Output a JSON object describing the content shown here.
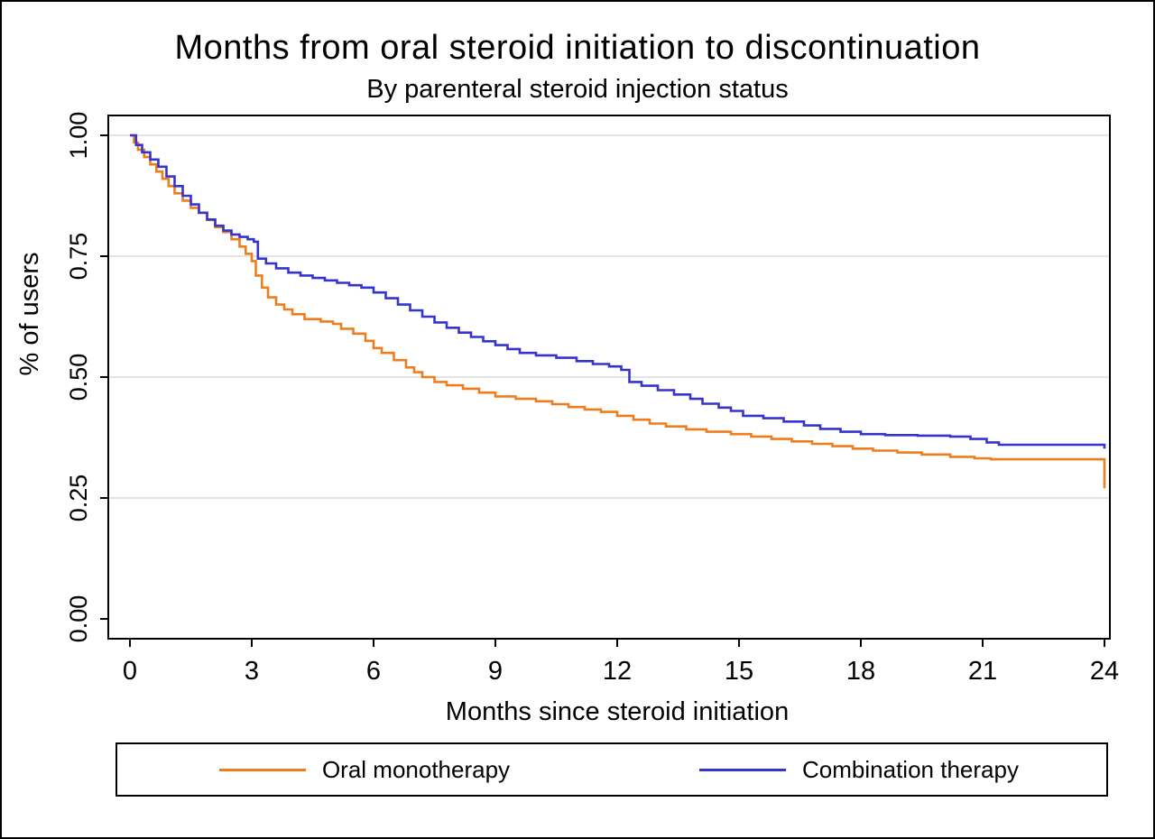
{
  "chart_data": {
    "type": "line",
    "subtype": "kaplan-meier-step",
    "title": "Months from oral steroid initiation to discontinuation",
    "subtitle": "By parenteral steroid injection status",
    "xlabel": "Months since steroid initiation",
    "ylabel": "% of users",
    "xlim": [
      0,
      24
    ],
    "ylim": [
      0,
      1
    ],
    "x_ticks": [
      "0",
      "3",
      "6",
      "9",
      "12",
      "15",
      "18",
      "21",
      "24"
    ],
    "y_ticks": [
      "0.00",
      "0.25",
      "0.50",
      "0.75",
      "1.00"
    ],
    "grid": "horizontal",
    "grid_color": "#e4e4e4",
    "legend_position": "bottom",
    "line_style": "step-after",
    "series": [
      {
        "name": "Oral monotherapy",
        "color": "#EE7D1E",
        "x": [
          0,
          0.1,
          0.2,
          0.35,
          0.5,
          0.65,
          0.8,
          0.95,
          1.1,
          1.3,
          1.5,
          1.7,
          1.9,
          2.1,
          2.3,
          2.5,
          2.7,
          2.85,
          3.0,
          3.1,
          3.25,
          3.4,
          3.6,
          3.8,
          4.0,
          4.3,
          4.7,
          5.0,
          5.2,
          5.5,
          5.8,
          6.0,
          6.2,
          6.5,
          6.8,
          7.0,
          7.2,
          7.5,
          7.8,
          8.2,
          8.6,
          9.0,
          9.5,
          10.0,
          10.4,
          10.8,
          11.2,
          11.6,
          12.0,
          12.4,
          12.8,
          13.2,
          13.7,
          14.2,
          14.8,
          15.3,
          15.8,
          16.3,
          16.8,
          17.3,
          17.8,
          18.3,
          18.9,
          19.5,
          20.2,
          20.8,
          21.2,
          24,
          24
        ],
        "y": [
          1.0,
          0.985,
          0.97,
          0.955,
          0.94,
          0.925,
          0.91,
          0.895,
          0.88,
          0.865,
          0.85,
          0.84,
          0.825,
          0.81,
          0.8,
          0.785,
          0.77,
          0.755,
          0.74,
          0.71,
          0.685,
          0.665,
          0.65,
          0.64,
          0.63,
          0.62,
          0.615,
          0.61,
          0.6,
          0.59,
          0.575,
          0.56,
          0.55,
          0.535,
          0.52,
          0.51,
          0.5,
          0.49,
          0.483,
          0.476,
          0.468,
          0.46,
          0.455,
          0.45,
          0.444,
          0.438,
          0.433,
          0.428,
          0.42,
          0.412,
          0.404,
          0.398,
          0.392,
          0.387,
          0.382,
          0.377,
          0.372,
          0.367,
          0.362,
          0.357,
          0.352,
          0.348,
          0.344,
          0.34,
          0.335,
          0.332,
          0.33,
          0.33,
          0.27
        ]
      },
      {
        "name": "Combination therapy",
        "color": "#3535CD",
        "x": [
          0,
          0.15,
          0.3,
          0.5,
          0.7,
          0.9,
          1.1,
          1.3,
          1.5,
          1.7,
          1.9,
          2.1,
          2.3,
          2.5,
          2.7,
          2.9,
          3.05,
          3.15,
          3.35,
          3.6,
          3.9,
          4.2,
          4.5,
          4.8,
          5.1,
          5.4,
          5.7,
          6.0,
          6.3,
          6.6,
          6.9,
          7.2,
          7.5,
          7.8,
          8.1,
          8.4,
          8.7,
          9.0,
          9.3,
          9.6,
          10.0,
          10.5,
          11.0,
          11.4,
          11.8,
          12.1,
          12.3,
          12.6,
          13.0,
          13.4,
          13.8,
          14.1,
          14.5,
          14.8,
          15.1,
          15.6,
          16.1,
          16.6,
          17.0,
          17.5,
          18.0,
          18.6,
          19.4,
          20.2,
          20.7,
          21.1,
          21.4,
          24,
          24
        ],
        "y": [
          1.0,
          0.98,
          0.965,
          0.95,
          0.935,
          0.915,
          0.895,
          0.875,
          0.857,
          0.84,
          0.826,
          0.813,
          0.803,
          0.795,
          0.79,
          0.785,
          0.78,
          0.745,
          0.735,
          0.725,
          0.716,
          0.71,
          0.705,
          0.7,
          0.695,
          0.69,
          0.685,
          0.675,
          0.663,
          0.65,
          0.638,
          0.625,
          0.613,
          0.602,
          0.592,
          0.583,
          0.574,
          0.566,
          0.558,
          0.55,
          0.545,
          0.54,
          0.533,
          0.527,
          0.522,
          0.515,
          0.49,
          0.482,
          0.473,
          0.464,
          0.455,
          0.445,
          0.437,
          0.43,
          0.42,
          0.415,
          0.408,
          0.4,
          0.393,
          0.387,
          0.382,
          0.38,
          0.379,
          0.377,
          0.372,
          0.365,
          0.36,
          0.36,
          0.352
        ]
      }
    ]
  }
}
